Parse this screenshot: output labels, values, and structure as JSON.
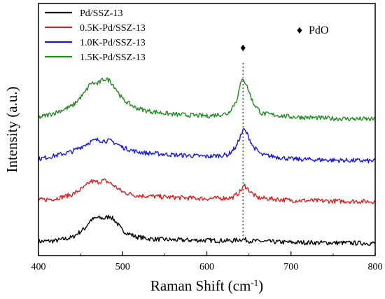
{
  "chart_data": {
    "type": "line",
    "xlabel": "Raman Shift (cm",
    "xlabel_sup": "-1",
    "xlabel_tail": ")",
    "ylabel": "Intensity (a.u.)",
    "xlim": [
      400,
      800
    ],
    "xticks": [
      "400",
      "500",
      "600",
      "700",
      "800"
    ],
    "y_ticks_shown": false,
    "grid": false,
    "legend_position": "top-left",
    "marker": {
      "symbol": "♦",
      "label": "PdO",
      "x": 643,
      "color": "#7b1f7b"
    },
    "series": [
      {
        "name": "Pd/SSZ-13",
        "color": "#000000",
        "offset": 0,
        "x": [
          400,
          420,
          440,
          455,
          462,
          470,
          478,
          485,
          492,
          500,
          515,
          530,
          560,
          600,
          630,
          642,
          650,
          670,
          700,
          750,
          800
        ],
        "y": [
          0.0,
          0.1,
          0.5,
          1.6,
          2.6,
          2.9,
          2.8,
          3.1,
          2.4,
          1.3,
          0.6,
          0.35,
          0.2,
          0.15,
          0.1,
          0.3,
          0.1,
          0.0,
          -0.1,
          -0.15,
          -0.2
        ]
      },
      {
        "name": "0.5K-Pd/SSZ-13",
        "color": "#d42020",
        "offset": 5.0,
        "x": [
          400,
          420,
          440,
          455,
          462,
          470,
          478,
          485,
          492,
          500,
          515,
          530,
          560,
          600,
          630,
          638,
          645,
          652,
          660,
          700,
          750,
          800
        ],
        "y": [
          0.0,
          0.2,
          0.7,
          1.6,
          2.3,
          2.2,
          2.4,
          2.1,
          1.6,
          1.0,
          0.6,
          0.5,
          0.35,
          0.2,
          0.3,
          0.9,
          1.8,
          1.0,
          0.3,
          0.0,
          -0.1,
          -0.15
        ]
      },
      {
        "name": "1.0K-Pd/SSZ-13",
        "color": "#1a1ad4",
        "offset": 10.0,
        "x": [
          400,
          420,
          440,
          455,
          462,
          470,
          478,
          485,
          492,
          500,
          515,
          530,
          560,
          600,
          625,
          635,
          640,
          644,
          648,
          655,
          665,
          700,
          750,
          800
        ],
        "y": [
          0.0,
          0.4,
          0.9,
          1.7,
          2.1,
          2.3,
          2.2,
          2.2,
          1.9,
          1.4,
          0.9,
          0.7,
          0.5,
          0.3,
          0.5,
          1.5,
          2.8,
          3.6,
          3.0,
          1.5,
          0.5,
          0.0,
          -0.15,
          -0.25
        ]
      },
      {
        "name": "1.5K-Pd/SSZ-13",
        "color": "#1f8a1f",
        "offset": 15.0,
        "x": [
          400,
          420,
          440,
          455,
          462,
          470,
          478,
          485,
          492,
          500,
          515,
          530,
          560,
          600,
          625,
          635,
          640,
          643,
          647,
          655,
          665,
          700,
          750,
          800
        ],
        "y": [
          0.0,
          0.6,
          1.4,
          3.0,
          4.2,
          4.1,
          4.7,
          4.5,
          3.5,
          2.2,
          1.2,
          0.8,
          0.4,
          0.2,
          0.5,
          2.0,
          4.0,
          4.8,
          4.0,
          1.8,
          0.5,
          0.1,
          -0.1,
          -0.2
        ]
      }
    ]
  }
}
